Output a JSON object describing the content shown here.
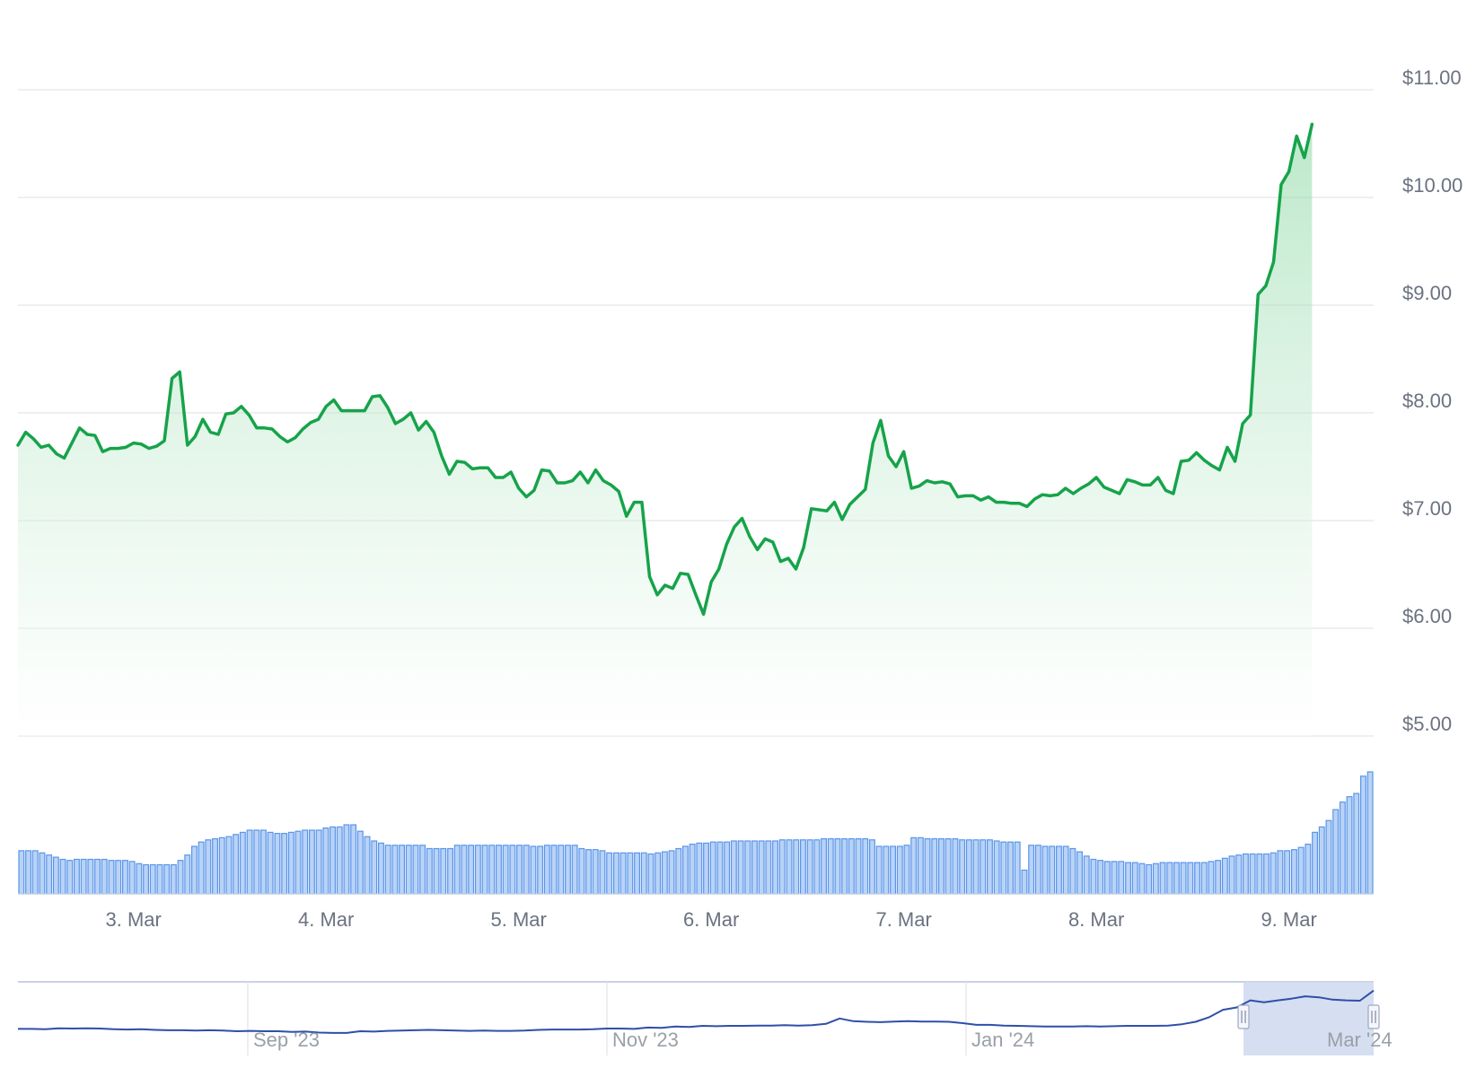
{
  "chart_data": {
    "type": "line",
    "title": "",
    "xlabel": "",
    "ylabel": "",
    "y_ticks": [
      "$5.00",
      "$6.00",
      "$7.00",
      "$8.00",
      "$9.00",
      "$10.00",
      "$11.00"
    ],
    "ylim": [
      5.0,
      11.0
    ],
    "x_ticks": [
      "3. Mar",
      "4. Mar",
      "5. Mar",
      "6. Mar",
      "7. Mar",
      "8. Mar",
      "9. Mar"
    ],
    "xlim": [
      2.4,
      9.44
    ],
    "grid": true,
    "colors": {
      "price_line": "#16a34a",
      "area_top": "#86d69f",
      "volume_fill": "#b9d3f6",
      "volume_stroke": "#5a95ea",
      "navigator_line": "#2f4fa8",
      "navigator_selection": "#d2daef"
    },
    "series": [
      {
        "points": [
          [
            2.4,
            7.7
          ],
          [
            2.44,
            7.82
          ],
          [
            2.48,
            7.76
          ],
          [
            2.52,
            7.68
          ],
          [
            2.56,
            7.7
          ],
          [
            2.6,
            7.62
          ],
          [
            2.64,
            7.58
          ],
          [
            2.68,
            7.72
          ],
          [
            2.72,
            7.86
          ],
          [
            2.76,
            7.8
          ],
          [
            2.8,
            7.79
          ],
          [
            2.84,
            7.64
          ],
          [
            2.88,
            7.67
          ],
          [
            2.92,
            7.67
          ],
          [
            2.96,
            7.68
          ],
          [
            3.0,
            7.72
          ],
          [
            3.04,
            7.71
          ],
          [
            3.08,
            7.67
          ],
          [
            3.12,
            7.69
          ],
          [
            3.16,
            7.74
          ],
          [
            3.2,
            8.32
          ],
          [
            3.24,
            8.38
          ],
          [
            3.28,
            7.7
          ],
          [
            3.32,
            7.78
          ],
          [
            3.36,
            7.94
          ],
          [
            3.4,
            7.82
          ],
          [
            3.44,
            7.8
          ],
          [
            3.48,
            7.99
          ],
          [
            3.52,
            8.0
          ],
          [
            3.56,
            8.06
          ],
          [
            3.6,
            7.98
          ],
          [
            3.64,
            7.86
          ],
          [
            3.68,
            7.86
          ],
          [
            3.72,
            7.85
          ],
          [
            3.76,
            7.78
          ],
          [
            3.8,
            7.73
          ],
          [
            3.84,
            7.77
          ],
          [
            3.88,
            7.85
          ],
          [
            3.92,
            7.91
          ],
          [
            3.96,
            7.94
          ],
          [
            4.0,
            8.06
          ],
          [
            4.04,
            8.12
          ],
          [
            4.08,
            8.02
          ],
          [
            4.12,
            8.02
          ],
          [
            4.16,
            8.02
          ],
          [
            4.2,
            8.02
          ],
          [
            4.24,
            8.15
          ],
          [
            4.28,
            8.16
          ],
          [
            4.32,
            8.05
          ],
          [
            4.36,
            7.9
          ],
          [
            4.4,
            7.94
          ],
          [
            4.44,
            8.0
          ],
          [
            4.48,
            7.84
          ],
          [
            4.52,
            7.92
          ],
          [
            4.56,
            7.82
          ],
          [
            4.6,
            7.6
          ],
          [
            4.64,
            7.43
          ],
          [
            4.68,
            7.55
          ],
          [
            4.72,
            7.54
          ],
          [
            4.76,
            7.48
          ],
          [
            4.8,
            7.49
          ],
          [
            4.84,
            7.49
          ],
          [
            4.88,
            7.4
          ],
          [
            4.92,
            7.4
          ],
          [
            4.96,
            7.45
          ],
          [
            5.0,
            7.3
          ],
          [
            5.04,
            7.22
          ],
          [
            5.08,
            7.28
          ],
          [
            5.12,
            7.47
          ],
          [
            5.16,
            7.46
          ],
          [
            5.2,
            7.35
          ],
          [
            5.24,
            7.35
          ],
          [
            5.28,
            7.37
          ],
          [
            5.32,
            7.45
          ],
          [
            5.36,
            7.35
          ],
          [
            5.4,
            7.47
          ],
          [
            5.44,
            7.37
          ],
          [
            5.48,
            7.33
          ],
          [
            5.52,
            7.27
          ],
          [
            5.56,
            7.04
          ],
          [
            5.6,
            7.17
          ],
          [
            5.64,
            7.17
          ],
          [
            5.68,
            6.48
          ],
          [
            5.72,
            6.31
          ],
          [
            5.76,
            6.4
          ],
          [
            5.8,
            6.37
          ],
          [
            5.84,
            6.51
          ],
          [
            5.88,
            6.5
          ],
          [
            5.92,
            6.31
          ],
          [
            5.96,
            6.13
          ],
          [
            6.0,
            6.43
          ],
          [
            6.04,
            6.55
          ],
          [
            6.08,
            6.78
          ],
          [
            6.12,
            6.94
          ],
          [
            6.16,
            7.02
          ],
          [
            6.2,
            6.85
          ],
          [
            6.24,
            6.73
          ],
          [
            6.28,
            6.83
          ],
          [
            6.32,
            6.8
          ],
          [
            6.36,
            6.62
          ],
          [
            6.4,
            6.65
          ],
          [
            6.44,
            6.55
          ],
          [
            6.48,
            6.75
          ],
          [
            6.52,
            7.11
          ],
          [
            6.56,
            7.1
          ],
          [
            6.6,
            7.09
          ],
          [
            6.64,
            7.17
          ],
          [
            6.68,
            7.01
          ],
          [
            6.72,
            7.15
          ],
          [
            6.76,
            7.22
          ],
          [
            6.8,
            7.29
          ],
          [
            6.84,
            7.72
          ],
          [
            6.88,
            7.93
          ],
          [
            6.92,
            7.6
          ],
          [
            6.96,
            7.5
          ],
          [
            7.0,
            7.64
          ],
          [
            7.04,
            7.3
          ],
          [
            7.08,
            7.32
          ],
          [
            7.12,
            7.37
          ],
          [
            7.16,
            7.35
          ],
          [
            7.2,
            7.36
          ],
          [
            7.24,
            7.34
          ],
          [
            7.28,
            7.22
          ],
          [
            7.32,
            7.23
          ],
          [
            7.36,
            7.23
          ],
          [
            7.4,
            7.19
          ],
          [
            7.44,
            7.22
          ],
          [
            7.48,
            7.17
          ],
          [
            7.52,
            7.17
          ],
          [
            7.56,
            7.16
          ],
          [
            7.6,
            7.16
          ],
          [
            7.64,
            7.13
          ],
          [
            7.68,
            7.2
          ],
          [
            7.72,
            7.24
          ],
          [
            7.76,
            7.23
          ],
          [
            7.8,
            7.24
          ],
          [
            7.84,
            7.3
          ],
          [
            7.88,
            7.25
          ],
          [
            7.92,
            7.3
          ],
          [
            7.96,
            7.34
          ],
          [
            8.0,
            7.4
          ],
          [
            8.04,
            7.31
          ],
          [
            8.08,
            7.28
          ],
          [
            8.12,
            7.25
          ],
          [
            8.16,
            7.38
          ],
          [
            8.2,
            7.36
          ],
          [
            8.24,
            7.33
          ],
          [
            8.28,
            7.33
          ],
          [
            8.32,
            7.4
          ],
          [
            8.36,
            7.28
          ],
          [
            8.4,
            7.25
          ],
          [
            8.44,
            7.55
          ],
          [
            8.48,
            7.56
          ],
          [
            8.52,
            7.63
          ],
          [
            8.56,
            7.56
          ],
          [
            8.6,
            7.51
          ],
          [
            8.64,
            7.47
          ],
          [
            8.68,
            7.68
          ],
          [
            8.72,
            7.55
          ],
          [
            8.76,
            7.9
          ],
          [
            8.8,
            7.98
          ],
          [
            8.84,
            9.1
          ],
          [
            8.88,
            9.18
          ],
          [
            8.92,
            9.4
          ],
          [
            8.96,
            10.12
          ],
          [
            9.0,
            10.24
          ],
          [
            9.04,
            10.57
          ],
          [
            9.08,
            10.37
          ],
          [
            9.12,
            10.68
          ]
        ]
      }
    ],
    "volume": {
      "values": [
        40,
        40,
        40,
        38,
        36,
        34,
        32,
        31,
        32,
        32,
        32,
        32,
        32,
        31,
        31,
        31,
        30,
        28,
        27,
        27,
        27,
        27,
        27,
        31,
        36,
        44,
        48,
        50,
        51,
        52,
        53,
        55,
        57,
        59,
        59,
        59,
        57,
        56,
        56,
        57,
        58,
        59,
        59,
        59,
        61,
        62,
        62,
        64,
        64,
        58,
        53,
        49,
        47,
        45,
        45,
        45,
        45,
        45,
        45,
        42,
        42,
        42,
        42,
        45,
        45,
        45,
        45,
        45,
        45,
        45,
        45,
        45,
        45,
        45,
        44,
        44,
        45,
        45,
        45,
        45,
        45,
        42,
        41,
        41,
        40,
        38,
        38,
        38,
        38,
        38,
        38,
        37,
        38,
        39,
        40,
        42,
        44,
        46,
        47,
        47,
        48,
        48,
        48,
        49,
        49,
        49,
        49,
        49,
        49,
        49,
        50,
        50,
        50,
        50,
        50,
        50,
        51,
        51,
        51,
        51,
        51,
        51,
        51,
        50,
        44,
        44,
        44,
        44,
        45,
        52,
        52,
        51,
        51,
        51,
        51,
        51,
        50,
        50,
        50,
        50,
        50,
        49,
        48,
        48,
        48,
        22,
        45,
        45,
        44,
        44,
        44,
        44,
        42,
        39,
        35,
        32,
        31,
        30,
        30,
        30,
        29,
        29,
        28,
        27,
        28,
        29,
        29,
        29,
        29,
        29,
        29,
        29,
        30,
        31,
        33,
        35,
        36,
        37,
        37,
        37,
        37,
        38,
        40,
        40,
        41,
        43,
        46,
        57,
        62,
        68,
        78,
        85,
        90,
        93,
        109,
        113
      ]
    },
    "navigator": {
      "labels": [
        "Sep '23",
        "Nov '23",
        "Jan '24",
        "Mar '24"
      ],
      "values": [
        0.31,
        0.31,
        0.3,
        0.33,
        0.32,
        0.33,
        0.32,
        0.3,
        0.29,
        0.3,
        0.28,
        0.27,
        0.27,
        0.26,
        0.27,
        0.26,
        0.24,
        0.25,
        0.24,
        0.24,
        0.22,
        0.23,
        0.2,
        0.19,
        0.19,
        0.24,
        0.23,
        0.25,
        0.26,
        0.27,
        0.28,
        0.27,
        0.26,
        0.25,
        0.26,
        0.25,
        0.25,
        0.26,
        0.28,
        0.29,
        0.29,
        0.29,
        0.3,
        0.32,
        0.32,
        0.31,
        0.35,
        0.34,
        0.38,
        0.37,
        0.4,
        0.39,
        0.4,
        0.4,
        0.41,
        0.41,
        0.42,
        0.41,
        0.42,
        0.46,
        0.62,
        0.54,
        0.52,
        0.51,
        0.53,
        0.54,
        0.53,
        0.53,
        0.52,
        0.48,
        0.43,
        0.43,
        0.41,
        0.4,
        0.39,
        0.38,
        0.38,
        0.38,
        0.39,
        0.38,
        0.39,
        0.4,
        0.4,
        0.4,
        0.41,
        0.45,
        0.52,
        0.66,
        0.88,
        0.95,
        1.16,
        1.1,
        1.16,
        1.21,
        1.28,
        1.25,
        1.18,
        1.16,
        1.15,
        1.45
      ],
      "selection_start": 0.904,
      "selection_end": 1.0
    }
  }
}
